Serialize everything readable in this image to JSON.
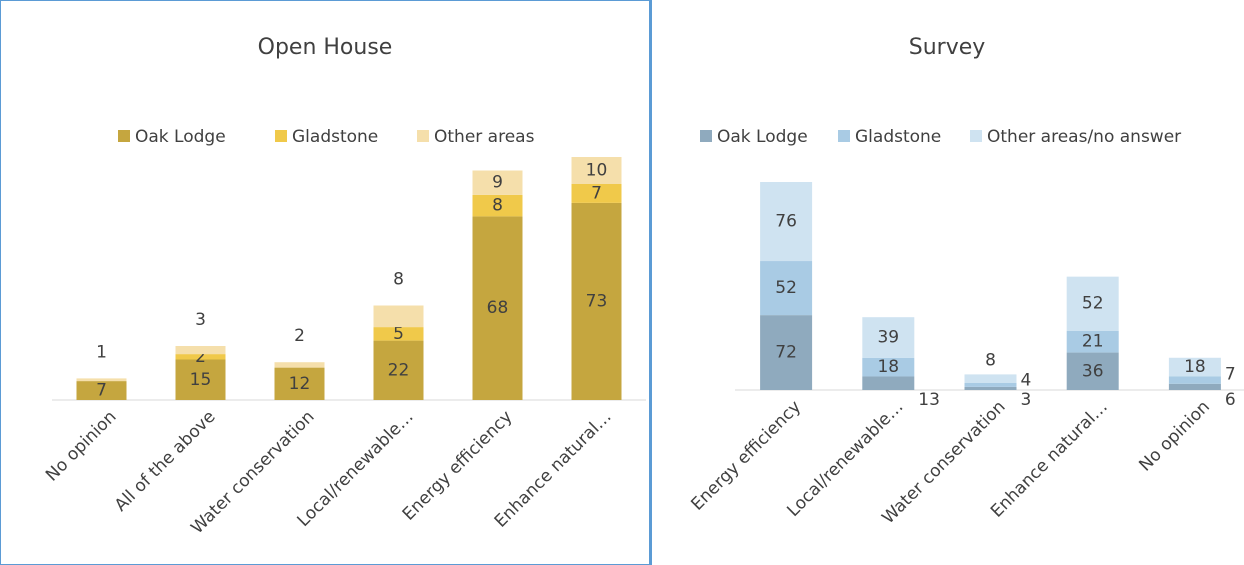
{
  "chart_data": [
    {
      "type": "bar",
      "stacked": true,
      "title": "Open House",
      "categories": [
        "No opinion",
        "All of the above",
        "Water conservation",
        "Local/renewable…",
        "Energy efficiency",
        "Enhance natural…"
      ],
      "series": [
        {
          "name": "Oak Lodge",
          "color": "#c5a63f",
          "values": [
            7,
            15,
            12,
            22,
            68,
            73
          ]
        },
        {
          "name": "Gladstone",
          "color": "#f0c94a",
          "values": [
            null,
            2,
            null,
            5,
            8,
            7
          ]
        },
        {
          "name": "Other areas",
          "color": "#f5dfab",
          "values": [
            1,
            3,
            2,
            8,
            9,
            10
          ]
        }
      ],
      "ylim": [
        0,
        100
      ]
    },
    {
      "type": "bar",
      "stacked": true,
      "title": "Survey",
      "categories": [
        "Energy efficiency",
        "Local/renewable…",
        "Water conservation",
        "Enhance natural…",
        "No opinion"
      ],
      "series": [
        {
          "name": "Oak Lodge",
          "color": "#8faabe",
          "values": [
            72,
            13,
            3,
            36,
            6
          ]
        },
        {
          "name": "Gladstone",
          "color": "#a9cbe4",
          "values": [
            52,
            18,
            4,
            21,
            7
          ]
        },
        {
          "name": "Other areas/no answer",
          "color": "#cfe3f1",
          "values": [
            76,
            39,
            8,
            52,
            18
          ]
        }
      ],
      "ylim": [
        0,
        250
      ]
    }
  ]
}
